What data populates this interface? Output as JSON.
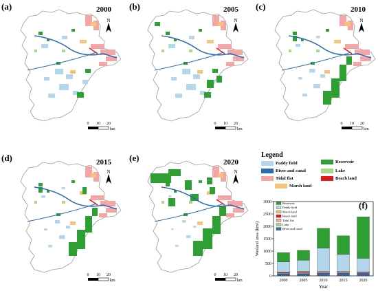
{
  "panels": [
    {
      "letter": "(a)",
      "year": "2000"
    },
    {
      "letter": "(b)",
      "year": "2005"
    },
    {
      "letter": "(c)",
      "year": "2010"
    },
    {
      "letter": "(d)",
      "year": "2015"
    },
    {
      "letter": "(e)",
      "year": "2020"
    },
    {
      "letter": "(f)",
      "year": ""
    }
  ],
  "north_label": "N",
  "scale": {
    "ticks": [
      "0",
      "10",
      "20"
    ],
    "unit": "km"
  },
  "legend": {
    "title": "Legend",
    "items": [
      {
        "label": "Paddy field",
        "color": "#b4d6ec"
      },
      {
        "label": "Reservoir",
        "color": "#2ea033"
      },
      {
        "label": "River and canal",
        "color": "#2b6bb5"
      },
      {
        "label": "Lake",
        "color": "#a9d78c"
      },
      {
        "label": "Tidal flat",
        "color": "#f4a5a6"
      },
      {
        "label": "Beach land",
        "color": "#e31a1c"
      },
      {
        "label": "Marsh land",
        "color": "#f7c27a"
      }
    ]
  },
  "chart_data": {
    "type": "bar",
    "stacked": true,
    "panel": "(f)",
    "categories": [
      "2000",
      "2005",
      "2010",
      "2015",
      "2020"
    ],
    "xlabel": "Year",
    "ylabel": "Wetland area (km²)",
    "ylim": [
      0,
      3000
    ],
    "yticks": [
      0,
      500,
      1000,
      1500,
      2000,
      2500,
      3000
    ],
    "legend_placement": "top-left",
    "series": [
      {
        "name": "River and canal",
        "color": "#2b6bb5",
        "values": [
          80,
          80,
          90,
          90,
          90
        ]
      },
      {
        "name": "Lake",
        "color": "#a9d78c",
        "values": [
          10,
          10,
          10,
          10,
          10
        ]
      },
      {
        "name": "Tidal flat",
        "color": "#f4a5a6",
        "values": [
          30,
          40,
          50,
          50,
          40
        ]
      },
      {
        "name": "Beach land",
        "color": "#e31a1c",
        "values": [
          10,
          20,
          10,
          10,
          10
        ]
      },
      {
        "name": "Marsh land",
        "color": "#f7c27a",
        "values": [
          30,
          30,
          10,
          10,
          10
        ]
      },
      {
        "name": "Paddy field",
        "color": "#b4d6ec",
        "values": [
          400,
          450,
          950,
          700,
          550
        ]
      },
      {
        "name": "Reservoir",
        "color": "#2ea033",
        "values": [
          380,
          400,
          800,
          750,
          1670
        ]
      }
    ],
    "legend_order": [
      "Reservoir",
      "Paddy field",
      "Marsh land",
      "Beach land",
      "Tidal flat",
      "Lake",
      "River and canal"
    ]
  }
}
